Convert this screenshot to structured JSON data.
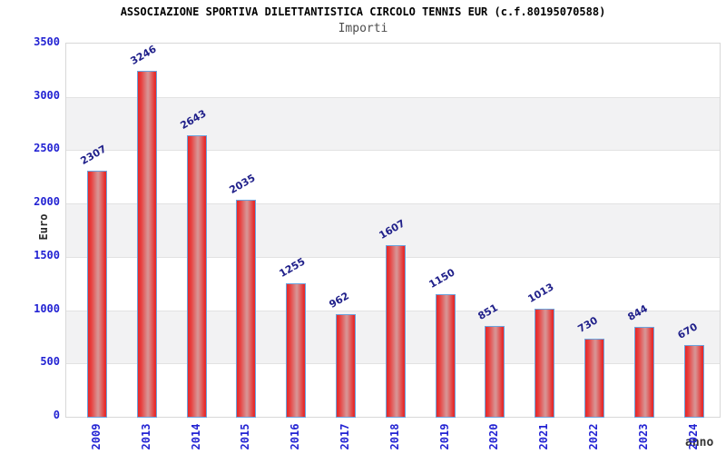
{
  "chart_data": {
    "type": "bar",
    "title": "ASSOCIAZIONE SPORTIVA DILETTANTISTICA CIRCOLO TENNIS EUR (c.f.80195070588)",
    "subtitle": "Importi",
    "xlabel": "anno",
    "ylabel": "Euro",
    "categories": [
      "2009",
      "2013",
      "2014",
      "2015",
      "2016",
      "2017",
      "2018",
      "2019",
      "2020",
      "2021",
      "2022",
      "2023",
      "2024"
    ],
    "values": [
      2307,
      3246,
      2643,
      2035,
      1255,
      962,
      1607,
      1150,
      851,
      1013,
      730,
      844,
      670
    ],
    "ylim": [
      0,
      3500
    ],
    "yticks": [
      0,
      500,
      1000,
      1500,
      2000,
      2500,
      3000,
      3500
    ],
    "grid": "horizontal gridlines with alternating gray/white bands every 500",
    "legend": "none",
    "value_labels": "shown above each bar, rotated -30deg",
    "xtick_rotation": -90,
    "colors": {
      "bar_red": "#e62c2c",
      "bar_center_highlight": "#d89292",
      "bar_border_blue": "#6ba3dd",
      "value_label_navy": "#20208a",
      "tick_label_blue": "#2323d3",
      "band_gray": "#f2f2f3",
      "gridline_gray": "#e2e2e2",
      "plot_border_gray": "#d8d8d8",
      "title_black": "#000000",
      "subtitle_gray": "#4d4d4d",
      "axis_title_dark": "#2b2b2b"
    }
  }
}
